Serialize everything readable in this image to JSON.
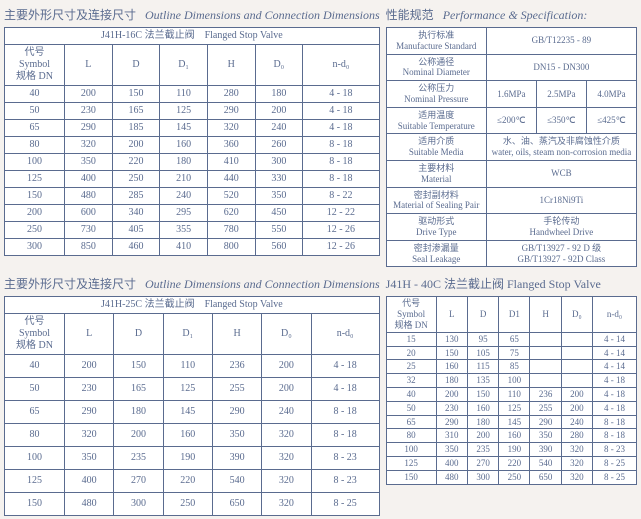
{
  "section1": {
    "title_cn": "主要外形尺寸及连接尺寸",
    "title_en": "Outline Dimensions and Connection Dimensions",
    "table": {
      "header_row": "J41H-16C 法兰截止阀　Flanged Stop Valve",
      "symbol_top": "代号 Symbol",
      "symbol_bottom": "规格 DN",
      "cols": [
        "L",
        "D",
        "D₁",
        "H",
        "D₀",
        "n-d₀"
      ],
      "rows": [
        [
          "40",
          "200",
          "150",
          "110",
          "280",
          "180",
          "4 - 18"
        ],
        [
          "50",
          "230",
          "165",
          "125",
          "290",
          "200",
          "4 - 18"
        ],
        [
          "65",
          "290",
          "185",
          "145",
          "320",
          "240",
          "4 - 18"
        ],
        [
          "80",
          "320",
          "200",
          "160",
          "360",
          "260",
          "8 - 18"
        ],
        [
          "100",
          "350",
          "220",
          "180",
          "410",
          "300",
          "8 - 18"
        ],
        [
          "125",
          "400",
          "250",
          "210",
          "440",
          "330",
          "8 - 18"
        ],
        [
          "150",
          "480",
          "285",
          "240",
          "520",
          "350",
          "8 - 22"
        ],
        [
          "200",
          "600",
          "340",
          "295",
          "620",
          "450",
          "12 - 22"
        ],
        [
          "250",
          "730",
          "405",
          "355",
          "780",
          "550",
          "12 - 26"
        ],
        [
          "300",
          "850",
          "460",
          "410",
          "800",
          "560",
          "12 - 26"
        ]
      ]
    }
  },
  "spec": {
    "title_cn": "性能规范",
    "title_en": "Performance & Specification:",
    "rows": [
      {
        "label_cn": "执行标准",
        "label_en": "Manufacture Standard",
        "vals": [
          "GB/T12235 - 89"
        ]
      },
      {
        "label_cn": "公称通径",
        "label_en": "Nominal Diameter",
        "vals": [
          "DN15 - DN300"
        ]
      },
      {
        "label_cn": "公称压力",
        "label_en": "Nominal Pressure",
        "vals": [
          "1.6MPa",
          "2.5MPa",
          "4.0MPa"
        ]
      },
      {
        "label_cn": "适用温度",
        "label_en": "Suitable Temperature",
        "vals": [
          "≤200℃",
          "≤350℃",
          "≤425℃"
        ]
      },
      {
        "label_cn": "适用介质",
        "label_en": "Suitable Media",
        "vals": [
          "水、油、蒸汽及非腐蚀性介质\nwater, oils, steam non-corrosion media"
        ]
      },
      {
        "label_cn": "主要材料",
        "label_en": "Material",
        "vals": [
          "WCB"
        ]
      },
      {
        "label_cn": "密封副材料",
        "label_en": "Material of Sealing Pair",
        "vals": [
          "1Cr18Ni9Ti"
        ]
      },
      {
        "label_cn": "驱动形式",
        "label_en": "Drive Type",
        "vals": [
          "手轮传动\nHandwheel Drive"
        ]
      },
      {
        "label_cn": "密封渗漏量",
        "label_en": "Seal Leakage",
        "vals": [
          "GB/T13927 - 92 D 级\nGB/T13927 - 92D Class"
        ]
      }
    ]
  },
  "section2": {
    "title_cn": "主要外形尺寸及连接尺寸",
    "title_en": "Outline Dimensions and Connection Dimensions",
    "table": {
      "header_row": "J41H-25C 法兰截止阀　Flanged Stop Valve",
      "symbol_top": "代号 Symbol",
      "symbol_bottom": "规格 DN",
      "cols": [
        "L",
        "D",
        "D₁",
        "H",
        "D₀",
        "n-d₀"
      ],
      "rows": [
        [
          "40",
          "200",
          "150",
          "110",
          "236",
          "200",
          "4 - 18"
        ],
        [
          "50",
          "230",
          "165",
          "125",
          "255",
          "200",
          "4 - 18"
        ],
        [
          "65",
          "290",
          "180",
          "145",
          "290",
          "240",
          "8 - 18"
        ],
        [
          "80",
          "320",
          "200",
          "160",
          "350",
          "320",
          "8 - 18"
        ],
        [
          "100",
          "350",
          "235",
          "190",
          "390",
          "320",
          "8 - 23"
        ],
        [
          "125",
          "400",
          "270",
          "220",
          "540",
          "320",
          "8 - 23"
        ],
        [
          "150",
          "480",
          "300",
          "250",
          "650",
          "320",
          "8 - 25"
        ]
      ]
    }
  },
  "section3": {
    "title": "J41H - 40C 法兰截止阀 Flanged Stop Valve",
    "symbol_top": "代号 Symbol",
    "symbol_bottom": "规格 DN",
    "cols": [
      "L",
      "D",
      "D1",
      "H",
      "D₀",
      "n-d₀"
    ],
    "rows": [
      [
        "15",
        "130",
        "95",
        "65",
        "",
        "",
        "4 - 14"
      ],
      [
        "20",
        "150",
        "105",
        "75",
        "",
        "",
        "4 - 14"
      ],
      [
        "25",
        "160",
        "115",
        "85",
        "",
        "",
        "4 - 14"
      ],
      [
        "32",
        "180",
        "135",
        "100",
        "",
        "",
        "4 - 18"
      ],
      [
        "40",
        "200",
        "150",
        "110",
        "236",
        "200",
        "4 - 18"
      ],
      [
        "50",
        "230",
        "160",
        "125",
        "255",
        "200",
        "4 - 18"
      ],
      [
        "65",
        "290",
        "180",
        "145",
        "290",
        "240",
        "8 - 18"
      ],
      [
        "80",
        "310",
        "200",
        "160",
        "350",
        "280",
        "8 - 18"
      ],
      [
        "100",
        "350",
        "235",
        "190",
        "390",
        "320",
        "8 - 23"
      ],
      [
        "125",
        "400",
        "270",
        "220",
        "540",
        "320",
        "8 - 25"
      ],
      [
        "150",
        "480",
        "300",
        "250",
        "650",
        "320",
        "8 - 25"
      ]
    ]
  }
}
